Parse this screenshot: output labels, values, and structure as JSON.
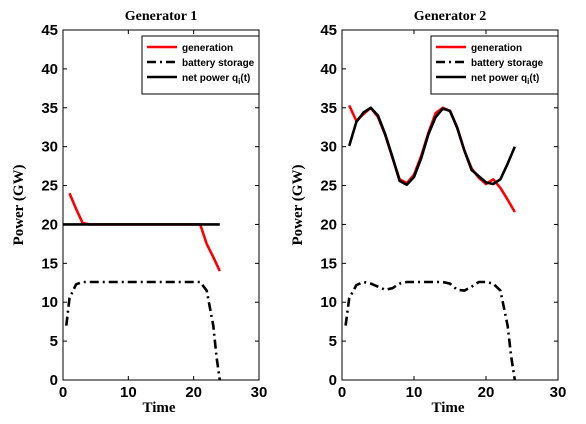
{
  "chart_data": [
    {
      "type": "line",
      "title": "Generator 1",
      "xlabel": "Time",
      "ylabel": "Power (GW)",
      "xlim": [
        0,
        30
      ],
      "ylim": [
        0,
        45
      ],
      "xticks": [
        "0",
        "10",
        "20",
        "30"
      ],
      "yticks": [
        "0",
        "5",
        "10",
        "15",
        "20",
        "25",
        "30",
        "35",
        "40",
        "45"
      ],
      "legend_position": "top-right",
      "series": [
        {
          "name": "generation",
          "color": "#ff0000",
          "style": "solid",
          "x": [
            1,
            2,
            3,
            4,
            5,
            6,
            7,
            8,
            9,
            10,
            11,
            12,
            13,
            14,
            15,
            16,
            17,
            18,
            19,
            20,
            21,
            22,
            23,
            24
          ],
          "y": [
            24,
            22,
            20.2,
            20,
            20,
            20,
            20,
            20,
            20,
            20,
            20,
            20,
            20,
            20,
            20,
            20,
            20,
            20,
            20,
            20,
            20,
            17.5,
            15.8,
            14
          ]
        },
        {
          "name": "battery storage",
          "color": "#000000",
          "style": "dashdot",
          "x": [
            0.5,
            1,
            2,
            3,
            4,
            5,
            6,
            7,
            8,
            9,
            10,
            11,
            12,
            13,
            14,
            15,
            16,
            17,
            18,
            19,
            20,
            21,
            22,
            23,
            23.5,
            24
          ],
          "y": [
            7,
            10.5,
            12.3,
            12.6,
            12.6,
            12.6,
            12.6,
            12.6,
            12.6,
            12.6,
            12.6,
            12.6,
            12.6,
            12.6,
            12.6,
            12.6,
            12.6,
            12.6,
            12.6,
            12.6,
            12.6,
            12.6,
            11.5,
            7,
            3,
            0
          ]
        },
        {
          "name": "net power q_i(t)",
          "color": "#000000",
          "style": "solid",
          "x": [
            0,
            24
          ],
          "y": [
            20,
            20
          ]
        }
      ]
    },
    {
      "type": "line",
      "title": "Generator 2",
      "xlabel": "Time",
      "ylabel": "Power (GW)",
      "xlim": [
        0,
        30
      ],
      "ylim": [
        0,
        45
      ],
      "xticks": [
        "0",
        "10",
        "20",
        "30"
      ],
      "yticks": [
        "0",
        "5",
        "10",
        "15",
        "20",
        "25",
        "30",
        "35",
        "40",
        "45"
      ],
      "legend_position": "top-right",
      "series": [
        {
          "name": "generation",
          "color": "#ff0000",
          "style": "solid",
          "x": [
            1,
            2,
            3,
            4,
            5,
            6,
            7,
            8,
            9,
            10,
            11,
            12,
            13,
            14,
            15,
            16,
            17,
            18,
            19,
            20,
            21,
            22,
            23,
            24
          ],
          "y": [
            35.3,
            33.3,
            34.2,
            35,
            33.8,
            31.5,
            28.6,
            25.8,
            25.3,
            26.4,
            28.8,
            31.8,
            34.3,
            35,
            34.6,
            32.5,
            29.5,
            27.2,
            26,
            25.2,
            25.8,
            24.7,
            23.2,
            21.6
          ]
        },
        {
          "name": "battery storage",
          "color": "#000000",
          "style": "dashdot",
          "x": [
            0.5,
            1,
            2,
            3,
            4,
            5,
            6,
            7,
            8,
            9,
            10,
            11,
            12,
            13,
            14,
            15,
            16,
            17,
            18,
            19,
            20,
            21,
            22,
            23,
            23.5,
            24
          ],
          "y": [
            7,
            10.5,
            12.2,
            12.6,
            12.4,
            12,
            11.6,
            11.8,
            12.4,
            12.6,
            12.6,
            12.6,
            12.6,
            12.6,
            12.6,
            12.4,
            11.6,
            11.5,
            12,
            12.6,
            12.6,
            12.4,
            11.5,
            7,
            3,
            0
          ]
        },
        {
          "name": "net power q_i(t)",
          "color": "#000000",
          "style": "solid",
          "x": [
            1,
            2,
            3,
            4,
            5,
            6,
            7,
            8,
            9,
            10,
            11,
            12,
            13,
            14,
            15,
            16,
            17,
            18,
            19,
            20,
            21,
            22,
            23,
            24
          ],
          "y": [
            30.1,
            33.2,
            34.4,
            35,
            34,
            31.6,
            28.7,
            25.6,
            25.1,
            26.1,
            28.5,
            31.6,
            33.8,
            34.9,
            34.6,
            32.4,
            29.5,
            27,
            26.2,
            25.4,
            25.2,
            25.8,
            27.8,
            30
          ]
        }
      ]
    }
  ]
}
